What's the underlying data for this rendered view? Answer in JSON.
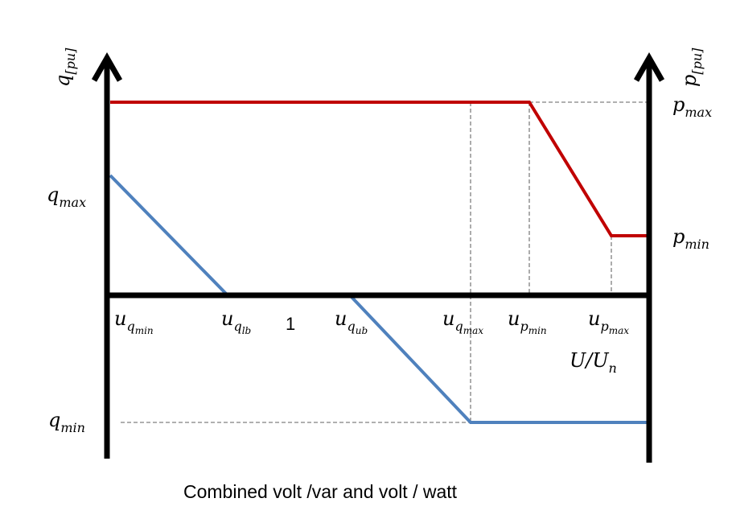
{
  "colors": {
    "p_curve": "#c00000",
    "q_curve": "#4f81bd",
    "axis": "#000000",
    "guide": "#808080"
  },
  "labels": {
    "q_axis": {
      "base": "q",
      "sub": "[pu]"
    },
    "p_axis": {
      "base": "p",
      "sub": "[pu]"
    },
    "q_max": {
      "base": "q",
      "sub": "max"
    },
    "q_min": {
      "base": "q",
      "sub": "min"
    },
    "p_max": {
      "base": "p",
      "sub": "max"
    },
    "p_min": {
      "base": "p",
      "sub": "min"
    },
    "u_qmin": {
      "base": "u",
      "sub": "q",
      "subsub": "min"
    },
    "u_qlb": {
      "base": "u",
      "sub": "q",
      "subsub": "lb"
    },
    "one": "1",
    "u_qub": {
      "base": "u",
      "sub": "q",
      "subsub": "ub"
    },
    "u_qmax": {
      "base": "u",
      "sub": "q",
      "subsub": "max"
    },
    "u_pmin": {
      "base": "u",
      "sub": "p",
      "subsub": "min"
    },
    "u_pmax": {
      "base": "u",
      "sub": "p",
      "subsub": "max"
    },
    "x_axis": {
      "base": "U/U",
      "sub": "n"
    }
  },
  "caption": "Combined volt /var and volt / watt"
}
